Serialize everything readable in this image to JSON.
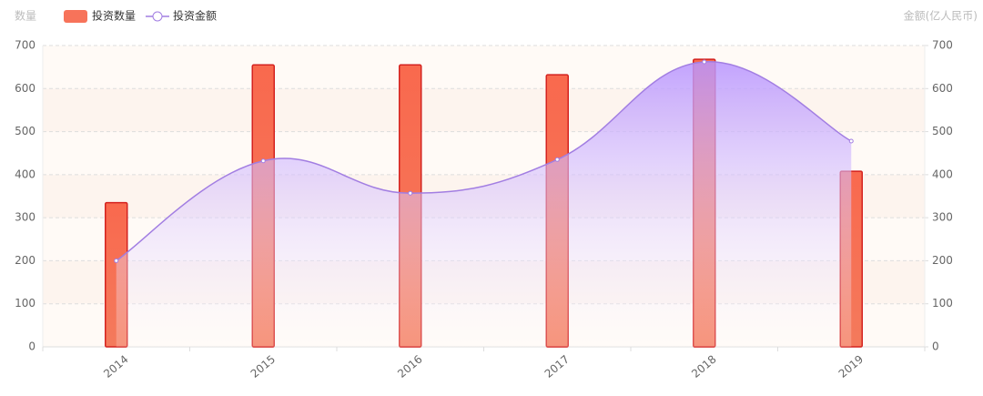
{
  "chart_data": {
    "type": "bar-line",
    "y_label": "数量",
    "y2_label": "金额(亿人民币)",
    "categories": [
      "2014",
      "2015",
      "2016",
      "2017",
      "2018",
      "2019"
    ],
    "series": [
      {
        "name": "投资数量",
        "type": "bar",
        "color": "#f7735a",
        "values": [
          335,
          655,
          655,
          632,
          668,
          408
        ]
      },
      {
        "name": "投资金额",
        "type": "line",
        "axis": "y2",
        "color": "#a27ee2",
        "values": [
          200,
          432,
          357,
          435,
          662,
          478
        ]
      }
    ],
    "ylim": [
      0,
      700
    ],
    "yticks": [
      0,
      100,
      200,
      300,
      400,
      500,
      600,
      700
    ],
    "y2lim": [
      0,
      700
    ],
    "y2ticks": [
      0,
      100,
      200,
      300,
      400,
      500,
      600,
      700
    ],
    "grid": true
  }
}
